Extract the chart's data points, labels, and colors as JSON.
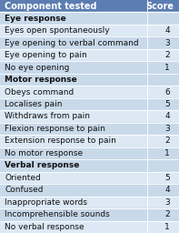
{
  "header": [
    "Component tested",
    "Score"
  ],
  "rows": [
    {
      "label": "Eye response",
      "score": "",
      "is_section": true
    },
    {
      "label": "Eyes open spontaneously",
      "score": "4",
      "is_section": false
    },
    {
      "label": "Eye opening to verbal command",
      "score": "3",
      "is_section": false
    },
    {
      "label": "Eye opening to pain",
      "score": "2",
      "is_section": false
    },
    {
      "label": "No eye opening",
      "score": "1",
      "is_section": false
    },
    {
      "label": "Motor response",
      "score": "",
      "is_section": true
    },
    {
      "label": "Obeys command",
      "score": "6",
      "is_section": false
    },
    {
      "label": "Localises pain",
      "score": "5",
      "is_section": false
    },
    {
      "label": "Withdraws from pain",
      "score": "4",
      "is_section": false
    },
    {
      "label": "Flexion response to pain",
      "score": "3",
      "is_section": false
    },
    {
      "label": "Extension response to pain",
      "score": "2",
      "is_section": false
    },
    {
      "label": "No motor response",
      "score": "1",
      "is_section": false
    },
    {
      "label": "Verbal response",
      "score": "",
      "is_section": true
    },
    {
      "label": "Oriented",
      "score": "5",
      "is_section": false
    },
    {
      "label": "Confused",
      "score": "4",
      "is_section": false
    },
    {
      "label": "Inappropriate words",
      "score": "3",
      "is_section": false
    },
    {
      "label": "Incomprehensible sounds",
      "score": "2",
      "is_section": false
    },
    {
      "label": "No verbal response",
      "score": "1",
      "is_section": false
    }
  ],
  "header_bg": "#5b7db1",
  "header_text_color": "#ffffff",
  "section_bg": "#c8d9ea",
  "row_bg_odd": "#dce9f5",
  "row_bg_even": "#c8d9ea",
  "divider_color": "#ffffff",
  "text_color": "#111111",
  "font_size": 6.5,
  "header_font_size": 7.0,
  "col_split": 0.82
}
